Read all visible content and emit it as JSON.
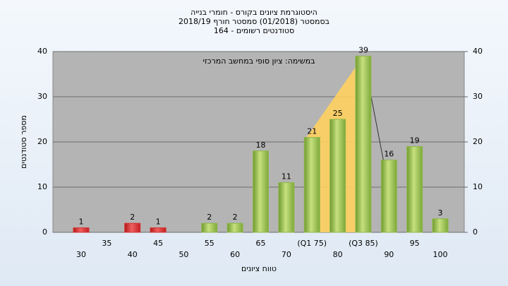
{
  "chart_data": {
    "type": "bar",
    "title": [
      "היסטוגרמת ציונים בקורס - חומרי בנייה",
      "בסמסטר  (01/2018)  סמסטר חורף 2018/19",
      "סטודנטים רשומים - 164"
    ],
    "annotation": "במשימה: ציון סופי במחשב המרכזי",
    "y_label": "מספר סטודנטים",
    "x_label": "טווח ציונים",
    "categories": [
      "30",
      "35",
      "40",
      "45",
      "50",
      "55",
      "60",
      "65",
      "70",
      "(Q1 75)",
      "80",
      "(Q3 85)",
      "90",
      "95",
      "100"
    ],
    "values": [
      1,
      null,
      2,
      1,
      null,
      2,
      2,
      18,
      11,
      21,
      25,
      39,
      16,
      19,
      3
    ],
    "colors": [
      "#d93030",
      null,
      "#d93030",
      "#d93030",
      null,
      "#8fb84a",
      "#8fb84a",
      "#8fb84a",
      "#8fb84a",
      "#8fb84a",
      "#8fb84a",
      "#8fb84a",
      "#8fb84a",
      "#8fb84a",
      "#8fb84a"
    ],
    "ylim": [
      0,
      40
    ],
    "yticks": [
      0,
      10,
      20,
      30,
      40
    ],
    "y2lim": [
      0,
      40
    ],
    "y2ticks": [
      0,
      10,
      20,
      30,
      40
    ],
    "grid": true
  }
}
